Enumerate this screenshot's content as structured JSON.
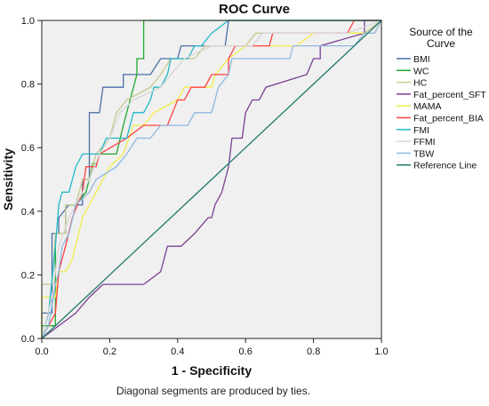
{
  "footnote": "Diagonal segments are produced by ties.",
  "chart_data": {
    "type": "line",
    "title": "ROC Curve",
    "xlabel": "1 - Specificity",
    "ylabel": "Sensitivity",
    "xlim": [
      0.0,
      1.0
    ],
    "ylim": [
      0.0,
      1.0
    ],
    "xticks": [
      "0.0",
      "0.2",
      "0.4",
      "0.6",
      "0.8",
      "1.0"
    ],
    "yticks": [
      "0.0",
      "0.2",
      "0.4",
      "0.6",
      "0.8",
      "1.0"
    ],
    "grid": false,
    "plot_background": "#f0f0f0",
    "legend": {
      "title": "Source of the Curve",
      "placement": "right"
    },
    "series": [
      {
        "name": "BMI",
        "color": "#4a6fa8",
        "points": [
          [
            0,
            0
          ],
          [
            0,
            0.08
          ],
          [
            0.03,
            0.08
          ],
          [
            0.03,
            0.33
          ],
          [
            0.05,
            0.33
          ],
          [
            0.05,
            0.38
          ],
          [
            0.08,
            0.42
          ],
          [
            0.12,
            0.42
          ],
          [
            0.12,
            0.5
          ],
          [
            0.14,
            0.5
          ],
          [
            0.14,
            0.71
          ],
          [
            0.17,
            0.71
          ],
          [
            0.18,
            0.79
          ],
          [
            0.24,
            0.79
          ],
          [
            0.24,
            0.83
          ],
          [
            0.32,
            0.83
          ],
          [
            0.35,
            0.88
          ],
          [
            0.4,
            0.88
          ],
          [
            0.41,
            0.92
          ],
          [
            0.54,
            0.92
          ],
          [
            0.55,
            1.0
          ],
          [
            1,
            1
          ]
        ]
      },
      {
        "name": "WC",
        "color": "#1faa2e",
        "points": [
          [
            0,
            0
          ],
          [
            0,
            0.04
          ],
          [
            0.04,
            0.04
          ],
          [
            0.04,
            0.33
          ],
          [
            0.07,
            0.33
          ],
          [
            0.07,
            0.42
          ],
          [
            0.1,
            0.42
          ],
          [
            0.13,
            0.46
          ],
          [
            0.14,
            0.5
          ],
          [
            0.15,
            0.55
          ],
          [
            0.16,
            0.55
          ],
          [
            0.17,
            0.58
          ],
          [
            0.22,
            0.58
          ],
          [
            0.24,
            0.67
          ],
          [
            0.26,
            0.75
          ],
          [
            0.28,
            0.83
          ],
          [
            0.28,
            0.88
          ],
          [
            0.3,
            0.88
          ],
          [
            0.3,
            1.0
          ],
          [
            1,
            1
          ]
        ]
      },
      {
        "name": "HC",
        "color": "#c8c890",
        "points": [
          [
            0,
            0
          ],
          [
            0,
            0.17
          ],
          [
            0.03,
            0.17
          ],
          [
            0.04,
            0.33
          ],
          [
            0.07,
            0.33
          ],
          [
            0.07,
            0.42
          ],
          [
            0.1,
            0.42
          ],
          [
            0.12,
            0.5
          ],
          [
            0.14,
            0.5
          ],
          [
            0.16,
            0.58
          ],
          [
            0.2,
            0.63
          ],
          [
            0.22,
            0.71
          ],
          [
            0.25,
            0.75
          ],
          [
            0.32,
            0.79
          ],
          [
            0.35,
            0.83
          ],
          [
            0.38,
            0.88
          ],
          [
            0.45,
            0.88
          ],
          [
            0.48,
            0.92
          ],
          [
            0.6,
            0.92
          ],
          [
            0.63,
            0.96
          ],
          [
            0.95,
            0.96
          ],
          [
            1,
            1
          ]
        ]
      },
      {
        "name": "Fat_percent_SFT",
        "color": "#7a3f92",
        "points": [
          [
            0,
            0
          ],
          [
            0.1,
            0.08
          ],
          [
            0.14,
            0.13
          ],
          [
            0.18,
            0.17
          ],
          [
            0.3,
            0.17
          ],
          [
            0.35,
            0.21
          ],
          [
            0.36,
            0.25
          ],
          [
            0.37,
            0.29
          ],
          [
            0.41,
            0.29
          ],
          [
            0.45,
            0.33
          ],
          [
            0.49,
            0.38
          ],
          [
            0.5,
            0.38
          ],
          [
            0.51,
            0.42
          ],
          [
            0.53,
            0.46
          ],
          [
            0.55,
            0.54
          ],
          [
            0.56,
            0.63
          ],
          [
            0.59,
            0.63
          ],
          [
            0.6,
            0.71
          ],
          [
            0.62,
            0.75
          ],
          [
            0.64,
            0.75
          ],
          [
            0.66,
            0.79
          ],
          [
            0.78,
            0.83
          ],
          [
            0.8,
            0.88
          ],
          [
            0.82,
            0.88
          ],
          [
            0.82,
            0.92
          ],
          [
            0.95,
            0.96
          ],
          [
            0.95,
            1.0
          ],
          [
            1,
            1
          ]
        ]
      },
      {
        "name": "MAMA",
        "color": "#f2ee4a",
        "points": [
          [
            0,
            0
          ],
          [
            0,
            0.13
          ],
          [
            0.04,
            0.13
          ],
          [
            0.05,
            0.21
          ],
          [
            0.07,
            0.21
          ],
          [
            0.09,
            0.25
          ],
          [
            0.12,
            0.38
          ],
          [
            0.14,
            0.42
          ],
          [
            0.2,
            0.54
          ],
          [
            0.24,
            0.58
          ],
          [
            0.27,
            0.67
          ],
          [
            0.3,
            0.67
          ],
          [
            0.33,
            0.71
          ],
          [
            0.4,
            0.75
          ],
          [
            0.42,
            0.79
          ],
          [
            0.5,
            0.79
          ],
          [
            0.51,
            0.83
          ],
          [
            0.55,
            0.88
          ],
          [
            0.6,
            0.92
          ],
          [
            0.75,
            0.92
          ],
          [
            0.8,
            0.96
          ],
          [
            0.98,
            0.96
          ],
          [
            1,
            1
          ]
        ]
      },
      {
        "name": "Fat_percent_BIA",
        "color": "#ff4040",
        "points": [
          [
            0,
            0
          ],
          [
            0.04,
            0.08
          ],
          [
            0.05,
            0.21
          ],
          [
            0.07,
            0.29
          ],
          [
            0.09,
            0.38
          ],
          [
            0.12,
            0.46
          ],
          [
            0.13,
            0.54
          ],
          [
            0.16,
            0.54
          ],
          [
            0.17,
            0.58
          ],
          [
            0.25,
            0.63
          ],
          [
            0.3,
            0.67
          ],
          [
            0.37,
            0.67
          ],
          [
            0.4,
            0.75
          ],
          [
            0.42,
            0.75
          ],
          [
            0.44,
            0.79
          ],
          [
            0.48,
            0.79
          ],
          [
            0.5,
            0.83
          ],
          [
            0.55,
            0.83
          ],
          [
            0.55,
            0.88
          ],
          [
            0.57,
            0.92
          ],
          [
            0.67,
            0.92
          ],
          [
            0.68,
            0.96
          ],
          [
            0.9,
            0.96
          ],
          [
            0.92,
            1.0
          ],
          [
            1,
            1
          ]
        ]
      },
      {
        "name": "FMI",
        "color": "#22b8c8",
        "points": [
          [
            0,
            0
          ],
          [
            0.02,
            0.08
          ],
          [
            0.04,
            0.29
          ],
          [
            0.05,
            0.42
          ],
          [
            0.06,
            0.46
          ],
          [
            0.08,
            0.46
          ],
          [
            0.1,
            0.54
          ],
          [
            0.12,
            0.58
          ],
          [
            0.17,
            0.58
          ],
          [
            0.19,
            0.63
          ],
          [
            0.25,
            0.63
          ],
          [
            0.27,
            0.71
          ],
          [
            0.3,
            0.71
          ],
          [
            0.32,
            0.75
          ],
          [
            0.33,
            0.79
          ],
          [
            0.35,
            0.79
          ],
          [
            0.37,
            0.83
          ],
          [
            0.38,
            0.88
          ],
          [
            0.43,
            0.88
          ],
          [
            0.45,
            0.92
          ],
          [
            0.47,
            0.92
          ],
          [
            0.5,
            0.96
          ],
          [
            0.55,
            1.0
          ],
          [
            1,
            1
          ]
        ]
      },
      {
        "name": "FFMI",
        "color": "#d6d6d6",
        "points": [
          [
            0,
            0
          ],
          [
            0.03,
            0.13
          ],
          [
            0.05,
            0.29
          ],
          [
            0.08,
            0.38
          ],
          [
            0.1,
            0.42
          ],
          [
            0.14,
            0.5
          ],
          [
            0.17,
            0.58
          ],
          [
            0.2,
            0.63
          ],
          [
            0.23,
            0.71
          ],
          [
            0.27,
            0.75
          ],
          [
            0.35,
            0.79
          ],
          [
            0.38,
            0.83
          ],
          [
            0.42,
            0.88
          ],
          [
            0.5,
            0.92
          ],
          [
            0.62,
            0.92
          ],
          [
            0.65,
            0.96
          ],
          [
            0.9,
            0.96
          ],
          [
            1,
            1
          ]
        ]
      },
      {
        "name": "TBW",
        "color": "#8fb8e0",
        "points": [
          [
            0,
            0
          ],
          [
            0.02,
            0.04
          ],
          [
            0.04,
            0.17
          ],
          [
            0.05,
            0.21
          ],
          [
            0.06,
            0.29
          ],
          [
            0.08,
            0.33
          ],
          [
            0.1,
            0.42
          ],
          [
            0.14,
            0.46
          ],
          [
            0.16,
            0.5
          ],
          [
            0.22,
            0.54
          ],
          [
            0.25,
            0.58
          ],
          [
            0.28,
            0.63
          ],
          [
            0.32,
            0.63
          ],
          [
            0.35,
            0.67
          ],
          [
            0.43,
            0.67
          ],
          [
            0.45,
            0.71
          ],
          [
            0.5,
            0.71
          ],
          [
            0.52,
            0.79
          ],
          [
            0.55,
            0.83
          ],
          [
            0.56,
            0.88
          ],
          [
            0.73,
            0.88
          ],
          [
            0.74,
            0.92
          ],
          [
            0.92,
            0.92
          ],
          [
            0.95,
            0.96
          ],
          [
            0.98,
            0.96
          ],
          [
            1,
            1
          ]
        ]
      },
      {
        "name": "Reference Line",
        "color": "#1f7a6a",
        "points": [
          [
            0,
            0
          ],
          [
            1,
            1
          ]
        ]
      }
    ]
  }
}
